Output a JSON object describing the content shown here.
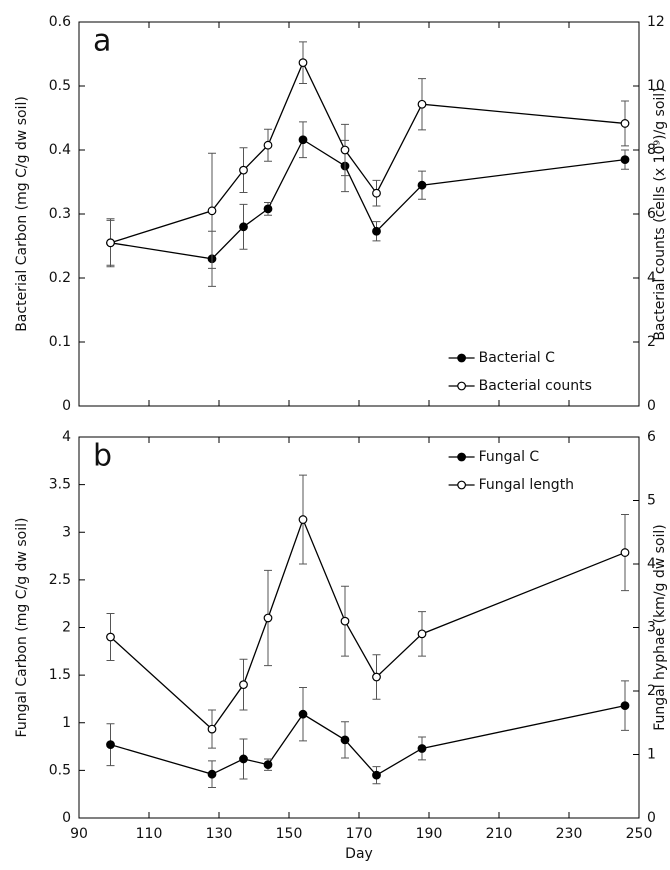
{
  "chart_data": [
    {
      "type": "line",
      "panel_label": "a",
      "ylabel": "Bacterial Carbon (mg C/g dw soil)",
      "y2label": "Bacterial counts (cells (x 10⁹)/g soil)",
      "x": [
        99,
        128,
        137,
        144,
        154,
        166,
        175,
        188,
        246
      ],
      "xlim": [
        90,
        250
      ],
      "xticks": [
        90,
        110,
        130,
        150,
        170,
        190,
        210,
        230,
        250
      ],
      "show_xtick_labels": false,
      "ylim": [
        0,
        0.6
      ],
      "yticks": [
        0,
        0.1,
        0.2,
        0.3,
        0.4,
        0.5,
        0.6
      ],
      "y2lim": [
        0,
        12
      ],
      "y2ticks": [
        0,
        2,
        4,
        6,
        8,
        10,
        12
      ],
      "legend": "lower right",
      "series": [
        {
          "name": "Bacterial C",
          "color": "#000000",
          "marker_fill": "#000000",
          "axis": "y",
          "values": [
            0.255,
            0.23,
            0.28,
            0.308,
            0.416,
            0.375,
            0.273,
            0.345,
            0.385
          ],
          "errors": [
            0.035,
            0.043,
            0.035,
            0.01,
            0.028,
            0.04,
            0.015,
            0.022,
            0.015
          ]
        },
        {
          "name": "Bacterial counts",
          "color": "#000000",
          "marker_fill": "#ffffff",
          "axis": "y2",
          "values": [
            5.1,
            6.1,
            7.37,
            8.15,
            10.73,
            8.0,
            6.65,
            9.43,
            8.83
          ],
          "errors": [
            0.75,
            1.8,
            0.7,
            0.5,
            0.65,
            0.8,
            0.4,
            0.8,
            0.7
          ]
        }
      ]
    },
    {
      "type": "line",
      "panel_label": "b",
      "xlabel": "Day",
      "ylabel": "Fungal Carbon (mg C/g dw soil)",
      "y2label": "Fungal hyphae (km/g dw soil)",
      "x": [
        99,
        128,
        137,
        144,
        154,
        166,
        175,
        188,
        246
      ],
      "xlim": [
        90,
        250
      ],
      "xticks": [
        90,
        110,
        130,
        150,
        170,
        190,
        210,
        230,
        250
      ],
      "show_xtick_labels": true,
      "ylim": [
        0,
        4
      ],
      "yticks": [
        0,
        0.5,
        1,
        1.5,
        2,
        2.5,
        3,
        3.5,
        4
      ],
      "y2lim": [
        0,
        6
      ],
      "y2ticks": [
        0,
        1,
        2,
        3,
        4,
        5,
        6
      ],
      "legend": "upper right",
      "series": [
        {
          "name": "Fungal C",
          "color": "#000000",
          "marker_fill": "#000000",
          "axis": "y",
          "values": [
            0.77,
            0.46,
            0.62,
            0.56,
            1.09,
            0.82,
            0.45,
            0.73,
            1.18
          ],
          "errors": [
            0.22,
            0.14,
            0.21,
            0.06,
            0.28,
            0.19,
            0.09,
            0.12,
            0.26
          ]
        },
        {
          "name": "Fungal length",
          "color": "#000000",
          "marker_fill": "#ffffff",
          "axis": "y2",
          "values": [
            2.85,
            1.4,
            2.1,
            3.15,
            4.7,
            3.1,
            2.22,
            2.9,
            4.18
          ],
          "errors": [
            0.37,
            0.3,
            0.4,
            0.75,
            0.7,
            0.55,
            0.35,
            0.35,
            0.6
          ]
        }
      ]
    }
  ]
}
